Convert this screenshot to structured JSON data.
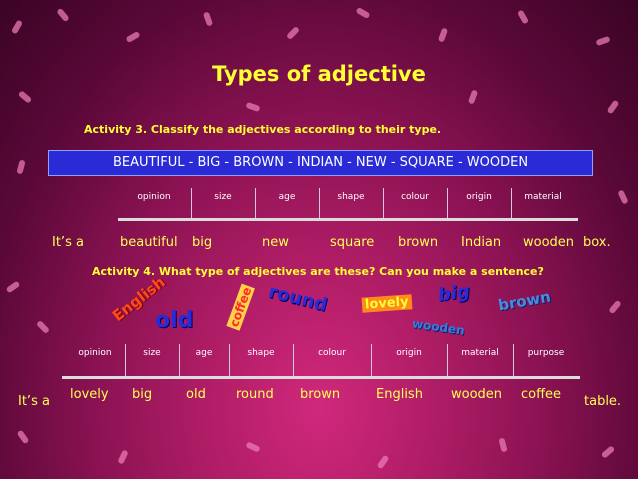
{
  "title": "Types of adjective",
  "activity3": {
    "instruction": "Activity 3. Classify the adjectives according to their type.",
    "word_box": "BEAUTIFUL  -  BIG  - BROWN   - INDIAN   -  NEW  -  SQUARE  -  WOODEN",
    "categories": [
      "opinion",
      "size",
      "age",
      "shape",
      "colour",
      "origin",
      "material"
    ],
    "sentence_start": "It’s a",
    "adjectives": [
      "beautiful",
      "big",
      "new",
      "square",
      "brown",
      "Indian",
      "wooden"
    ],
    "sentence_end": "box."
  },
  "activity4": {
    "instruction": "Activity 4. What type of adjectives are these? Can you make a sentence?",
    "scattered_words": [
      "English",
      "old",
      "coffee",
      "round",
      "lovely",
      "big",
      "brown",
      "wooden"
    ],
    "categories": [
      "opinion",
      "size",
      "age",
      "shape",
      "colour",
      "origin",
      "material",
      "purpose"
    ],
    "sentence_start": "It’s a",
    "adjectives": [
      "lovely",
      "big",
      "old",
      "round",
      "brown",
      "English",
      "wooden",
      "coffee"
    ],
    "sentence_end": "table."
  },
  "colors": {
    "background": "#8a1252",
    "title": "#ffff33",
    "word_box": "#2a2ad6"
  }
}
